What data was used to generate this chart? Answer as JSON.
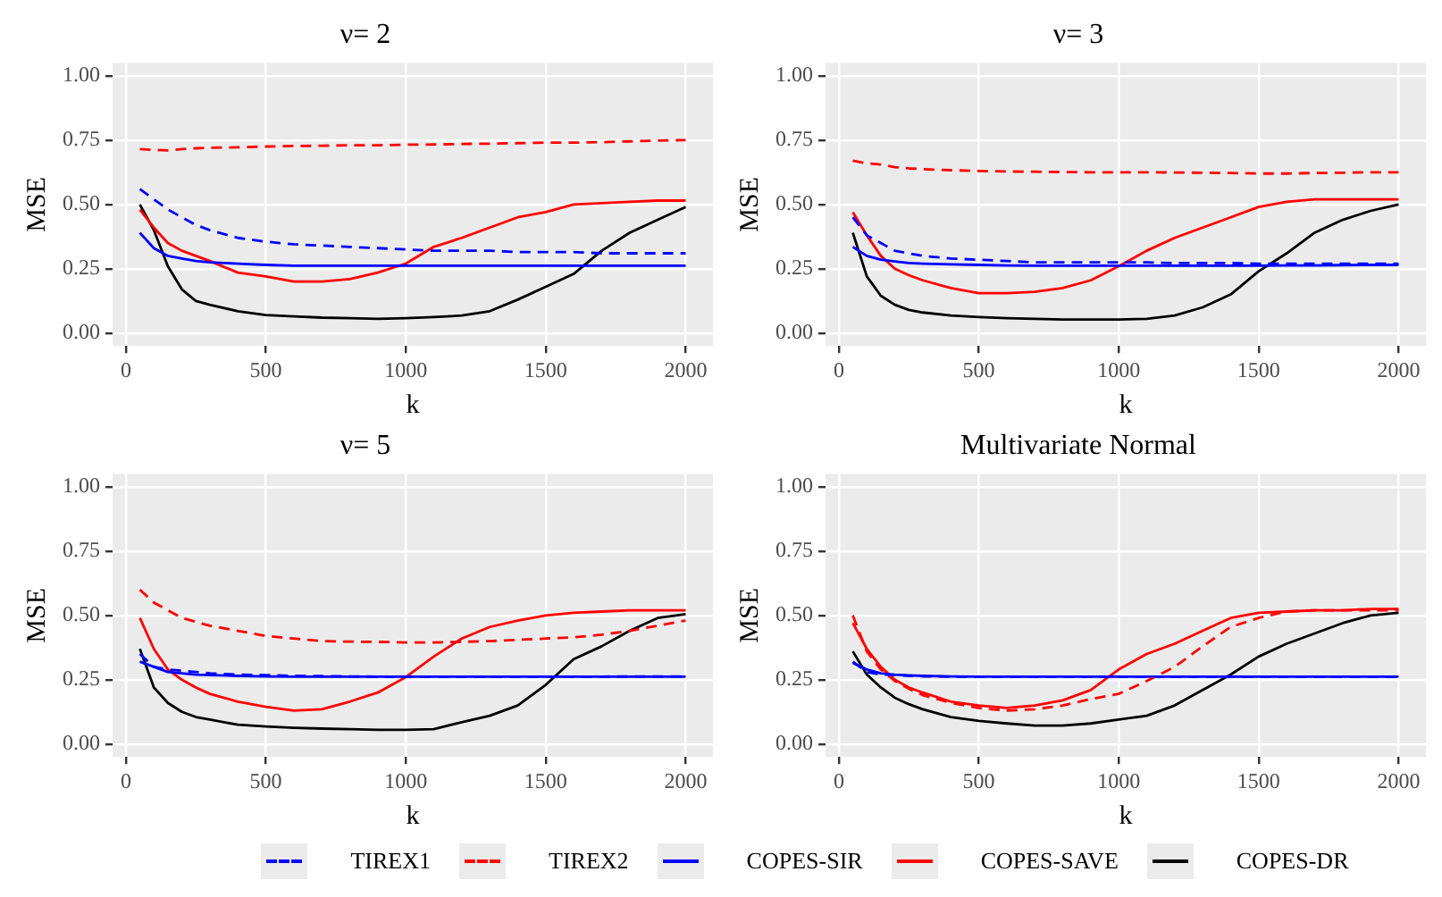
{
  "chart_data": [
    {
      "type": "line",
      "title": "ν= 2",
      "xlabel": "k",
      "ylabel": "MSE",
      "x": [
        50,
        100,
        150,
        200,
        250,
        300,
        400,
        500,
        600,
        700,
        800,
        900,
        1000,
        1100,
        1200,
        1300,
        1400,
        1500,
        1600,
        1700,
        1800,
        1900,
        2000
      ],
      "xlim": [
        -47.5,
        2097.5
      ],
      "xticks": [
        0,
        500,
        1000,
        1500,
        2000
      ],
      "ylim": [
        -0.05,
        1.05
      ],
      "yticks": [
        {
          "value": 0,
          "label": "0.00"
        },
        {
          "value": 0.25,
          "label": "0.25"
        },
        {
          "value": 0.5,
          "label": "0.50"
        },
        {
          "value": 0.75,
          "label": "0.75"
        },
        {
          "value": 1,
          "label": "1.00"
        }
      ],
      "grid": true,
      "legend": "bottom",
      "series": [
        {
          "name": "TIREX1",
          "color": "#0000ff",
          "line_style": "dashed",
          "values": [
            0.56,
            0.52,
            0.48,
            0.45,
            0.42,
            0.4,
            0.37,
            0.355,
            0.345,
            0.34,
            0.335,
            0.33,
            0.325,
            0.32,
            0.32,
            0.32,
            0.315,
            0.315,
            0.315,
            0.31,
            0.31,
            0.31,
            0.31
          ]
        },
        {
          "name": "TIREX2",
          "color": "#ff0000",
          "line_style": "dashed",
          "values": [
            0.715,
            0.712,
            0.71,
            0.715,
            0.718,
            0.72,
            0.722,
            0.725,
            0.727,
            0.728,
            0.73,
            0.73,
            0.732,
            0.733,
            0.735,
            0.736,
            0.738,
            0.74,
            0.74,
            0.742,
            0.745,
            0.748,
            0.75
          ]
        },
        {
          "name": "COPES-SIR",
          "color": "#0000ff",
          "line_style": "solid",
          "values": [
            0.39,
            0.33,
            0.3,
            0.29,
            0.28,
            0.275,
            0.27,
            0.265,
            0.262,
            0.262,
            0.262,
            0.262,
            0.262,
            0.262,
            0.262,
            0.262,
            0.262,
            0.262,
            0.262,
            0.262,
            0.262,
            0.262,
            0.262
          ]
        },
        {
          "name": "COPES-SAVE",
          "color": "#ff0000",
          "line_style": "solid",
          "values": [
            0.48,
            0.41,
            0.35,
            0.32,
            0.3,
            0.28,
            0.235,
            0.22,
            0.2,
            0.2,
            0.21,
            0.235,
            0.27,
            0.335,
            0.37,
            0.41,
            0.45,
            0.47,
            0.5,
            0.505,
            0.51,
            0.515,
            0.515
          ]
        },
        {
          "name": "COPES-DR",
          "color": "#000000",
          "line_style": "solid",
          "values": [
            0.5,
            0.4,
            0.26,
            0.17,
            0.125,
            0.11,
            0.085,
            0.07,
            0.065,
            0.06,
            0.058,
            0.055,
            0.058,
            0.062,
            0.068,
            0.085,
            0.13,
            0.18,
            0.23,
            0.32,
            0.39,
            0.44,
            0.49
          ]
        }
      ]
    },
    {
      "type": "line",
      "title": "ν= 3",
      "xlabel": "k",
      "ylabel": "MSE",
      "x": [
        50,
        100,
        150,
        200,
        250,
        300,
        400,
        500,
        600,
        700,
        800,
        900,
        1000,
        1100,
        1200,
        1300,
        1400,
        1500,
        1600,
        1700,
        1800,
        1900,
        2000
      ],
      "xlim": [
        -47.5,
        2097.5
      ],
      "xticks": [
        0,
        500,
        1000,
        1500,
        2000
      ],
      "ylim": [
        -0.05,
        1.05
      ],
      "yticks": [
        {
          "value": 0,
          "label": "0.00"
        },
        {
          "value": 0.25,
          "label": "0.25"
        },
        {
          "value": 0.5,
          "label": "0.50"
        },
        {
          "value": 0.75,
          "label": "0.75"
        },
        {
          "value": 1,
          "label": "1.00"
        }
      ],
      "grid": true,
      "series": [
        {
          "color": "#0000ff",
          "line_style": "dashed",
          "values": [
            0.45,
            0.38,
            0.35,
            0.32,
            0.31,
            0.3,
            0.29,
            0.285,
            0.28,
            0.275,
            0.275,
            0.275,
            0.275,
            0.275,
            0.272,
            0.272,
            0.272,
            0.27,
            0.27,
            0.27,
            0.27,
            0.27,
            0.27
          ]
        },
        {
          "color": "#ff0000",
          "line_style": "dashed",
          "values": [
            0.67,
            0.66,
            0.655,
            0.645,
            0.64,
            0.637,
            0.633,
            0.63,
            0.628,
            0.627,
            0.626,
            0.625,
            0.625,
            0.625,
            0.624,
            0.623,
            0.622,
            0.62,
            0.62,
            0.622,
            0.623,
            0.625,
            0.625
          ]
        },
        {
          "color": "#0000ff",
          "line_style": "solid",
          "values": [
            0.335,
            0.3,
            0.285,
            0.278,
            0.272,
            0.27,
            0.267,
            0.265,
            0.263,
            0.262,
            0.262,
            0.262,
            0.262,
            0.262,
            0.262,
            0.262,
            0.262,
            0.262,
            0.263,
            0.263,
            0.264,
            0.265,
            0.265
          ]
        },
        {
          "color": "#ff0000",
          "line_style": "solid",
          "values": [
            0.47,
            0.38,
            0.3,
            0.25,
            0.225,
            0.205,
            0.175,
            0.155,
            0.155,
            0.16,
            0.175,
            0.205,
            0.26,
            0.32,
            0.37,
            0.41,
            0.45,
            0.49,
            0.51,
            0.52,
            0.52,
            0.52,
            0.52
          ]
        },
        {
          "color": "#000000",
          "line_style": "solid",
          "values": [
            0.39,
            0.22,
            0.145,
            0.11,
            0.09,
            0.08,
            0.068,
            0.062,
            0.058,
            0.055,
            0.053,
            0.053,
            0.053,
            0.055,
            0.068,
            0.1,
            0.15,
            0.24,
            0.31,
            0.39,
            0.44,
            0.475,
            0.5
          ]
        }
      ]
    },
    {
      "type": "line",
      "title": "ν= 5",
      "xlabel": "k",
      "ylabel": "MSE",
      "x": [
        50,
        100,
        150,
        200,
        250,
        300,
        400,
        500,
        600,
        700,
        800,
        900,
        1000,
        1100,
        1200,
        1300,
        1400,
        1500,
        1600,
        1700,
        1800,
        1900,
        2000
      ],
      "xlim": [
        -47.5,
        2097.5
      ],
      "xticks": [
        0,
        500,
        1000,
        1500,
        2000
      ],
      "ylim": [
        -0.05,
        1.05
      ],
      "yticks": [
        {
          "value": 0,
          "label": "0.00"
        },
        {
          "value": 0.25,
          "label": "0.25"
        },
        {
          "value": 0.5,
          "label": "0.50"
        },
        {
          "value": 0.75,
          "label": "0.75"
        },
        {
          "value": 1,
          "label": "1.00"
        }
      ],
      "grid": true,
      "series": [
        {
          "color": "#0000ff",
          "line_style": "dashed",
          "values": [
            0.35,
            0.3,
            0.29,
            0.285,
            0.28,
            0.275,
            0.27,
            0.268,
            0.265,
            0.264,
            0.263,
            0.262,
            0.262,
            0.262,
            0.262,
            0.262,
            0.262,
            0.262,
            0.262,
            0.262,
            0.263,
            0.263,
            0.263
          ]
        },
        {
          "color": "#ff0000",
          "line_style": "dashed",
          "values": [
            0.6,
            0.55,
            0.52,
            0.49,
            0.475,
            0.46,
            0.44,
            0.42,
            0.41,
            0.4,
            0.398,
            0.397,
            0.395,
            0.395,
            0.397,
            0.4,
            0.405,
            0.41,
            0.415,
            0.425,
            0.44,
            0.46,
            0.48
          ]
        },
        {
          "color": "#0000ff",
          "line_style": "solid",
          "values": [
            0.32,
            0.3,
            0.28,
            0.275,
            0.27,
            0.268,
            0.265,
            0.263,
            0.262,
            0.262,
            0.262,
            0.262,
            0.262,
            0.262,
            0.262,
            0.262,
            0.262,
            0.262,
            0.262,
            0.262,
            0.262,
            0.262,
            0.262
          ]
        },
        {
          "color": "#ff0000",
          "line_style": "solid",
          "values": [
            0.49,
            0.37,
            0.29,
            0.25,
            0.22,
            0.195,
            0.165,
            0.145,
            0.13,
            0.135,
            0.165,
            0.2,
            0.26,
            0.34,
            0.41,
            0.455,
            0.48,
            0.5,
            0.51,
            0.515,
            0.52,
            0.52,
            0.52
          ]
        },
        {
          "color": "#000000",
          "line_style": "solid",
          "values": [
            0.37,
            0.22,
            0.16,
            0.125,
            0.105,
            0.095,
            0.075,
            0.068,
            0.063,
            0.06,
            0.058,
            0.055,
            0.055,
            0.058,
            0.085,
            0.11,
            0.15,
            0.23,
            0.33,
            0.38,
            0.44,
            0.49,
            0.505
          ]
        }
      ]
    },
    {
      "type": "line",
      "title": "Multivariate Normal",
      "xlabel": "k",
      "ylabel": "MSE",
      "x": [
        50,
        100,
        150,
        200,
        250,
        300,
        400,
        500,
        600,
        700,
        800,
        900,
        1000,
        1100,
        1200,
        1300,
        1400,
        1500,
        1600,
        1700,
        1800,
        1900,
        2000
      ],
      "xlim": [
        -47.5,
        2097.5
      ],
      "xticks": [
        0,
        500,
        1000,
        1500,
        2000
      ],
      "ylim": [
        -0.05,
        1.05
      ],
      "yticks": [
        {
          "value": 0,
          "label": "0.00"
        },
        {
          "value": 0.25,
          "label": "0.25"
        },
        {
          "value": 0.5,
          "label": "0.50"
        },
        {
          "value": 0.75,
          "label": "0.75"
        },
        {
          "value": 1,
          "label": "1.00"
        }
      ],
      "grid": true,
      "series": [
        {
          "color": "#0000ff",
          "line_style": "dashed",
          "values": [
            0.32,
            0.28,
            0.27,
            0.268,
            0.265,
            0.263,
            0.262,
            0.262,
            0.262,
            0.262,
            0.262,
            0.262,
            0.262,
            0.262,
            0.262,
            0.262,
            0.262,
            0.262,
            0.262,
            0.262,
            0.262,
            0.262,
            0.262
          ]
        },
        {
          "color": "#ff0000",
          "line_style": "dashed",
          "values": [
            0.5,
            0.36,
            0.29,
            0.245,
            0.215,
            0.19,
            0.16,
            0.14,
            0.13,
            0.135,
            0.15,
            0.175,
            0.195,
            0.245,
            0.3,
            0.38,
            0.455,
            0.49,
            0.515,
            0.52,
            0.52,
            0.52,
            0.52
          ]
        },
        {
          "color": "#0000ff",
          "line_style": "solid",
          "values": [
            0.315,
            0.29,
            0.275,
            0.27,
            0.267,
            0.265,
            0.263,
            0.262,
            0.262,
            0.262,
            0.262,
            0.262,
            0.262,
            0.262,
            0.262,
            0.262,
            0.262,
            0.262,
            0.262,
            0.262,
            0.262,
            0.262,
            0.262
          ]
        },
        {
          "color": "#ff0000",
          "line_style": "solid",
          "values": [
            0.47,
            0.37,
            0.3,
            0.25,
            0.22,
            0.2,
            0.165,
            0.15,
            0.14,
            0.15,
            0.17,
            0.21,
            0.29,
            0.35,
            0.39,
            0.44,
            0.49,
            0.51,
            0.515,
            0.52,
            0.52,
            0.525,
            0.525
          ]
        },
        {
          "color": "#000000",
          "line_style": "solid",
          "values": [
            0.36,
            0.27,
            0.22,
            0.18,
            0.155,
            0.135,
            0.105,
            0.09,
            0.08,
            0.072,
            0.072,
            0.08,
            0.095,
            0.11,
            0.15,
            0.21,
            0.27,
            0.34,
            0.39,
            0.43,
            0.47,
            0.5,
            0.51
          ]
        }
      ]
    }
  ]
}
